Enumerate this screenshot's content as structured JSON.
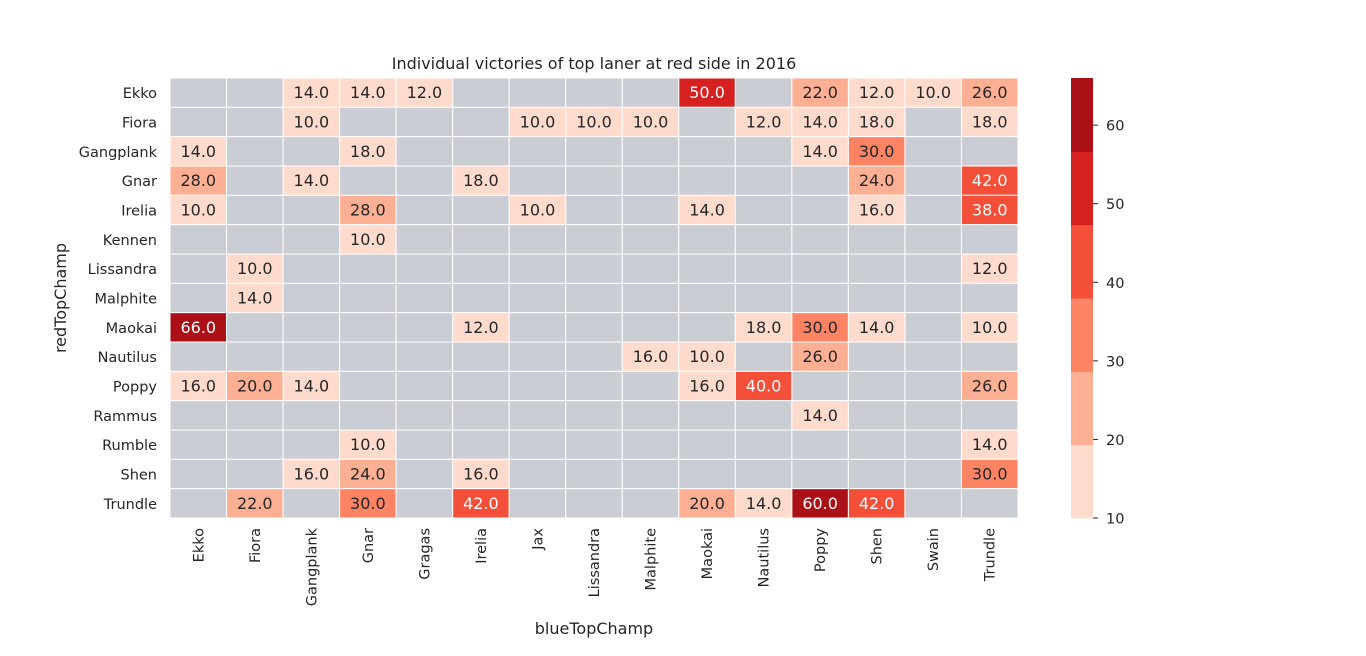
{
  "chart_data": {
    "type": "heatmap",
    "title": "Individual victories of top laner at red side in 2016",
    "xlabel": "blueTopChamp",
    "ylabel": "redTopChamp",
    "x_categories": [
      "Ekko",
      "Fiora",
      "Gangplank",
      "Gnar",
      "Gragas",
      "Irelia",
      "Jax",
      "Lissandra",
      "Malphite",
      "Maokai",
      "Nautilus",
      "Poppy",
      "Shen",
      "Swain",
      "Trundle"
    ],
    "y_categories": [
      "Ekko",
      "Fiora",
      "Gangplank",
      "Gnar",
      "Irelia",
      "Kennen",
      "Lissandra",
      "Malphite",
      "Maokai",
      "Nautilus",
      "Poppy",
      "Rammus",
      "Rumble",
      "Shen",
      "Trundle"
    ],
    "values": [
      [
        null,
        null,
        14.0,
        14.0,
        12.0,
        null,
        null,
        null,
        null,
        50.0,
        null,
        22.0,
        12.0,
        10.0,
        26.0
      ],
      [
        null,
        null,
        10.0,
        null,
        null,
        null,
        10.0,
        10.0,
        10.0,
        null,
        12.0,
        14.0,
        18.0,
        null,
        18.0
      ],
      [
        14.0,
        null,
        null,
        18.0,
        null,
        null,
        null,
        null,
        null,
        null,
        null,
        14.0,
        30.0,
        null,
        null
      ],
      [
        28.0,
        null,
        14.0,
        null,
        null,
        18.0,
        null,
        null,
        null,
        null,
        null,
        null,
        24.0,
        null,
        42.0
      ],
      [
        10.0,
        null,
        null,
        28.0,
        null,
        null,
        10.0,
        null,
        null,
        14.0,
        null,
        null,
        16.0,
        null,
        38.0
      ],
      [
        null,
        null,
        null,
        10.0,
        null,
        null,
        null,
        null,
        null,
        null,
        null,
        null,
        null,
        null,
        null
      ],
      [
        null,
        10.0,
        null,
        null,
        null,
        null,
        null,
        null,
        null,
        null,
        null,
        null,
        null,
        null,
        12.0
      ],
      [
        null,
        14.0,
        null,
        null,
        null,
        null,
        null,
        null,
        null,
        null,
        null,
        null,
        null,
        null,
        null
      ],
      [
        66.0,
        null,
        null,
        null,
        null,
        12.0,
        null,
        null,
        null,
        null,
        18.0,
        30.0,
        14.0,
        null,
        10.0
      ],
      [
        null,
        null,
        null,
        null,
        null,
        null,
        null,
        null,
        16.0,
        10.0,
        null,
        26.0,
        null,
        null,
        null
      ],
      [
        16.0,
        20.0,
        14.0,
        null,
        null,
        null,
        null,
        null,
        null,
        16.0,
        40.0,
        null,
        null,
        null,
        26.0
      ],
      [
        null,
        null,
        null,
        null,
        null,
        null,
        null,
        null,
        null,
        null,
        null,
        14.0,
        null,
        null,
        null
      ],
      [
        null,
        null,
        null,
        10.0,
        null,
        null,
        null,
        null,
        null,
        null,
        null,
        null,
        null,
        null,
        14.0
      ],
      [
        null,
        null,
        16.0,
        24.0,
        null,
        16.0,
        null,
        null,
        null,
        null,
        null,
        null,
        null,
        null,
        30.0
      ],
      [
        null,
        22.0,
        null,
        30.0,
        null,
        42.0,
        null,
        null,
        null,
        20.0,
        14.0,
        60.0,
        42.0,
        null,
        null
      ]
    ],
    "colorbar": {
      "min": 10,
      "max": 66,
      "ticks": [
        "10",
        "20",
        "30",
        "40",
        "50",
        "60"
      ],
      "tick_values": [
        10,
        20,
        30,
        40,
        50,
        60
      ],
      "colors": [
        "#fedbcc",
        "#fcaf93",
        "#fc8363",
        "#f44f39",
        "#d52221",
        "#aa1016"
      ]
    },
    "missing_color": "#cacdd4",
    "grid_color": "#ffffff",
    "legend": "colorbar right",
    "value_format": "one decimal"
  }
}
